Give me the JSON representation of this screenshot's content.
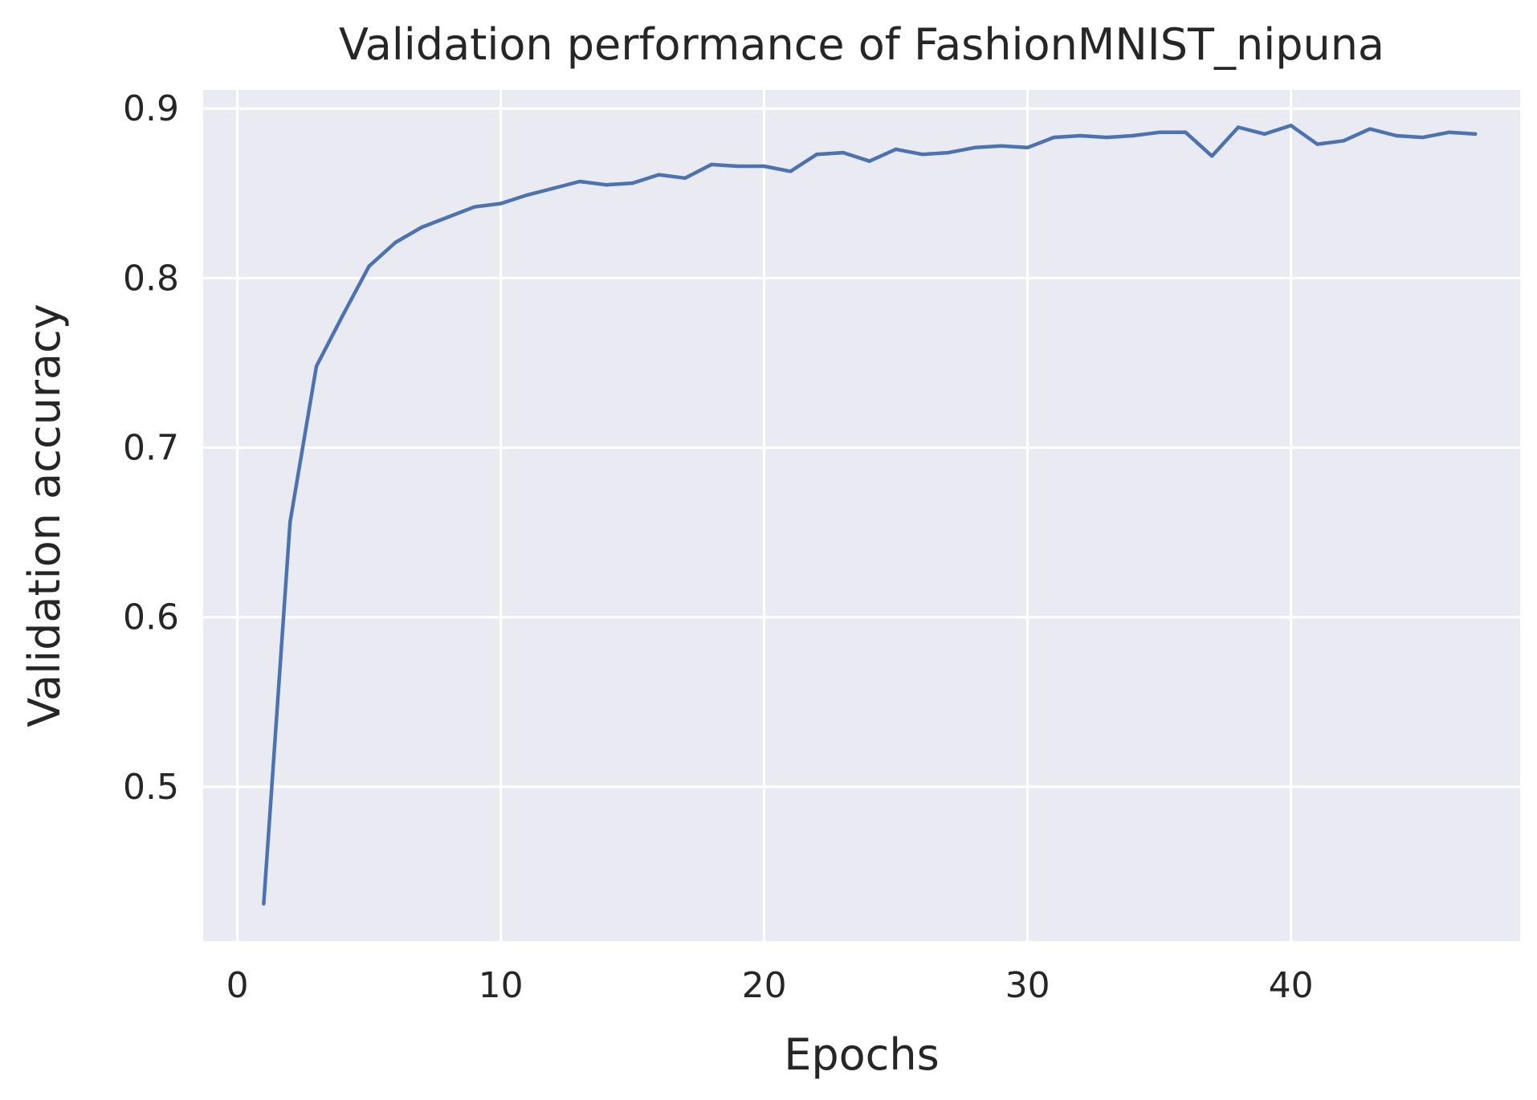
{
  "chart_data": {
    "type": "line",
    "title": "Validation performance of FashionMNIST_nipuna",
    "xlabel": "Epochs",
    "ylabel": "Validation accuracy",
    "xlim": [
      -1.3,
      48.7
    ],
    "ylim": [
      0.409,
      0.911
    ],
    "x_ticks": [
      0,
      10,
      20,
      30,
      40
    ],
    "x_tick_labels": [
      "0",
      "10",
      "20",
      "30",
      "40"
    ],
    "y_ticks": [
      0.5,
      0.6,
      0.7,
      0.8,
      0.9
    ],
    "y_tick_labels": [
      "0.5",
      "0.6",
      "0.7",
      "0.8",
      "0.9"
    ],
    "grid": true,
    "background_color": "#EAEAF2",
    "grid_color": "#FFFFFF",
    "series": [
      {
        "color": "#4C72B0",
        "x": [
          1,
          2,
          3,
          4,
          5,
          6,
          7,
          8,
          9,
          10,
          11,
          12,
          13,
          14,
          15,
          16,
          17,
          18,
          19,
          20,
          21,
          22,
          23,
          24,
          25,
          26,
          27,
          28,
          29,
          30,
          31,
          32,
          33,
          34,
          35,
          36,
          37,
          38,
          39,
          40,
          41,
          42,
          43,
          44,
          45,
          46,
          47
        ],
        "values": [
          0.431,
          0.656,
          0.748,
          0.778,
          0.807,
          0.821,
          0.83,
          0.836,
          0.842,
          0.844,
          0.849,
          0.853,
          0.857,
          0.855,
          0.856,
          0.861,
          0.859,
          0.867,
          0.866,
          0.866,
          0.863,
          0.873,
          0.874,
          0.869,
          0.876,
          0.873,
          0.874,
          0.877,
          0.878,
          0.877,
          0.883,
          0.884,
          0.883,
          0.884,
          0.886,
          0.886,
          0.872,
          0.889,
          0.885,
          0.89,
          0.879,
          0.881,
          0.888,
          0.884,
          0.883,
          0.886,
          0.885
        ]
      }
    ]
  }
}
